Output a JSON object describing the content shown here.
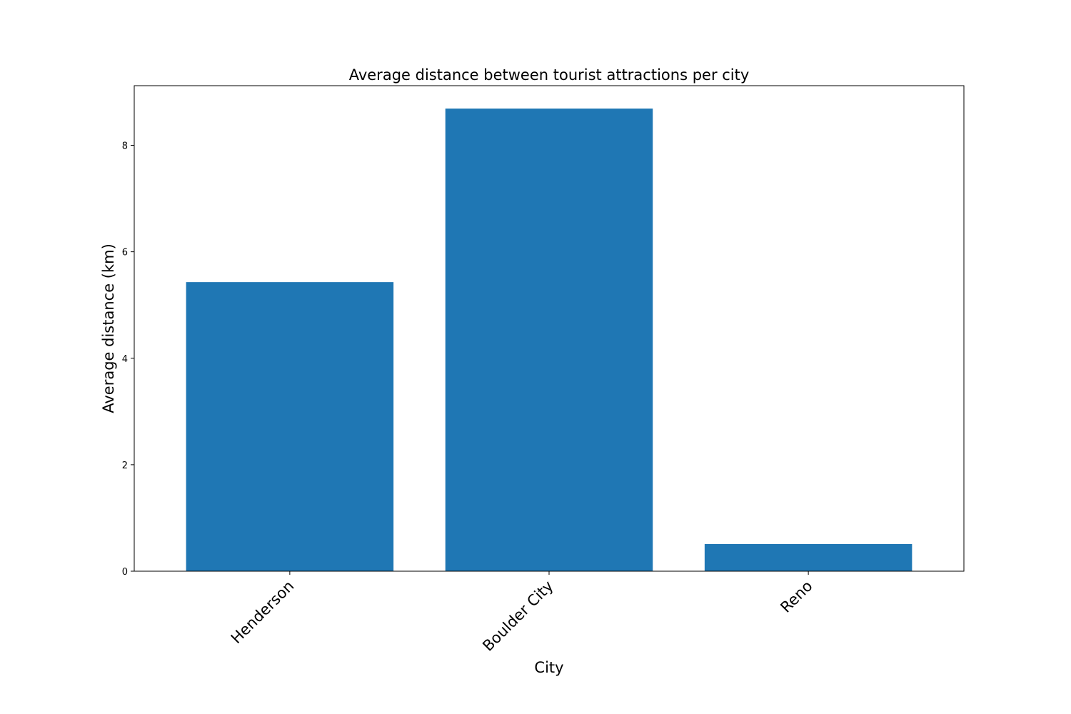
{
  "chart_data": {
    "type": "bar",
    "title": "Average distance between tourist attractions per city",
    "xlabel": "City",
    "ylabel": "Average distance (km)",
    "categories": [
      "Henderson",
      "Boulder City",
      "Reno"
    ],
    "values": [
      5.43,
      8.69,
      0.51
    ],
    "ylim": [
      0,
      9.12
    ],
    "yticks": [
      0,
      2,
      4,
      6,
      8
    ],
    "bar_color": "#1f77b4",
    "grid": false,
    "legend": "none"
  }
}
